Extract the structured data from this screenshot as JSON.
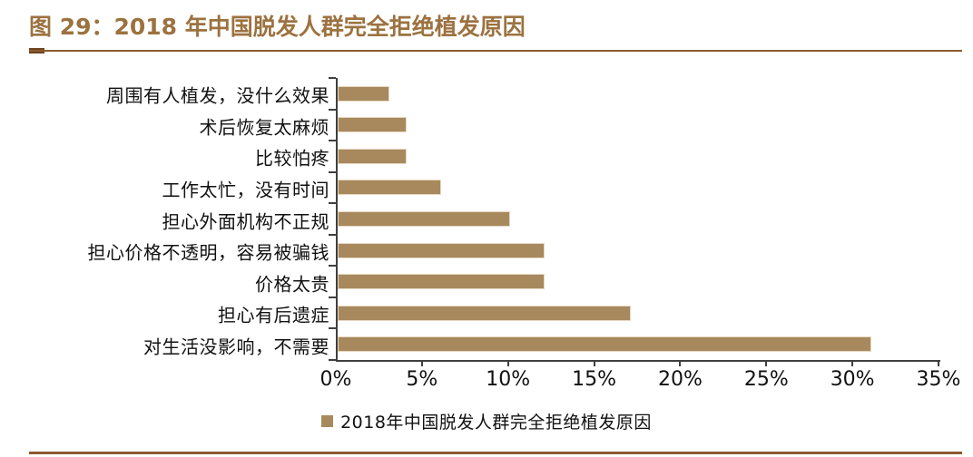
{
  "figure": {
    "title": "图 29：2018 年中国脱发人群完全拒绝植发原因"
  },
  "colors": {
    "title_color": "#9C7240",
    "rule_color": "#8C5A2E",
    "rule_dash_color": "#6E4420",
    "axis_color": "#3F3F3F",
    "text_color": "#111111",
    "bar_color": "#A8895E",
    "bar_border_color": "#E7D9C2",
    "background_color": "#FFFFFF"
  },
  "chart_data": {
    "type": "bar",
    "orientation": "horizontal",
    "title": "图 29：2018 年中国脱发人群完全拒绝植发原因",
    "categories": [
      "周围有人植发，没什么效果",
      "术后恢复太麻烦",
      "比较怕疼",
      "工作太忙，没有时间",
      "担心外面机构不正规",
      "担心价格不透明，容易被骗钱",
      "价格太贵",
      "担心有后遗症",
      "对生活没影响，不需要"
    ],
    "values": [
      3,
      4,
      4,
      6,
      10,
      12,
      12,
      17,
      31
    ],
    "value_unit": "%",
    "xlabel": "",
    "ylabel": "",
    "xlim": [
      0,
      35
    ],
    "x_ticks": [
      "0%",
      "5%",
      "10%",
      "15%",
      "20%",
      "25%",
      "30%",
      "35%"
    ],
    "x_tick_values": [
      0,
      5,
      10,
      15,
      20,
      25,
      30,
      35
    ],
    "grid": false,
    "legend_position": "bottom-center",
    "legend": [
      {
        "label": "2018年中国脱发人群完全拒绝植发原因",
        "swatch_color": "#A8895E"
      }
    ]
  }
}
